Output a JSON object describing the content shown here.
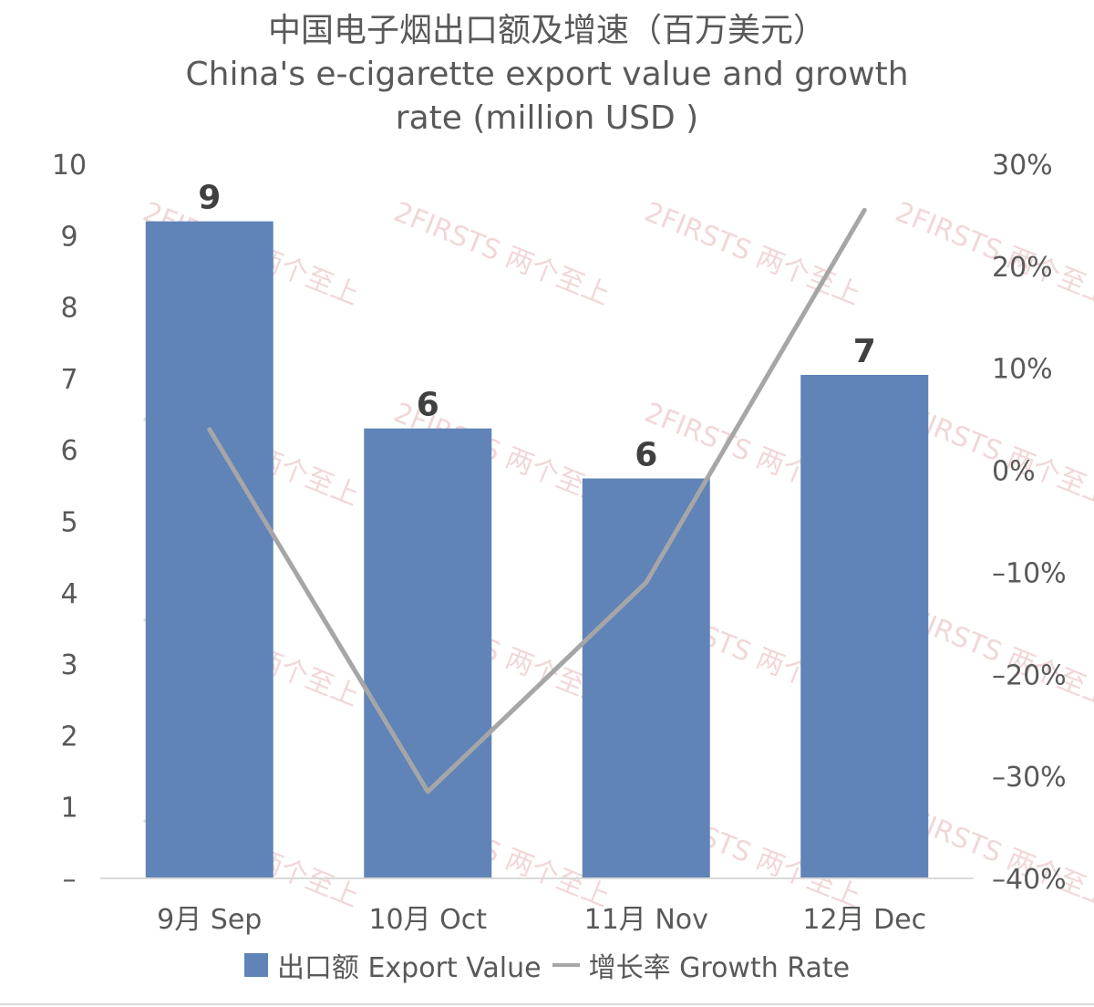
{
  "chart_data": {
    "type": "bar+line",
    "title": "中国电子烟出口额及增速（百万美元）",
    "subtitle_line1": "China's e-cigarette export value and growth",
    "subtitle_line2": "rate (million USD )",
    "categories": [
      "9月 Sep",
      "10月 Oct",
      "11月 Nov",
      "12月 Dec"
    ],
    "series": [
      {
        "name": "出口额 Export Value",
        "type": "bar",
        "axis": "left",
        "values": [
          9.2,
          6.3,
          5.6,
          7.05
        ],
        "data_labels": [
          "9",
          "6",
          "6",
          "7"
        ],
        "color": "#6083b8"
      },
      {
        "name": "增长率 Growth Rate",
        "type": "line",
        "axis": "right",
        "values": [
          4,
          -31.5,
          -11,
          25.5
        ],
        "color": "#a6a6a6"
      }
    ],
    "y_left": {
      "range": [
        0,
        10
      ],
      "ticks": [
        0,
        1,
        2,
        3,
        4,
        5,
        6,
        7,
        8,
        9,
        10
      ],
      "tick_labels": [
        "–",
        "1",
        "2",
        "3",
        "4",
        "5",
        "6",
        "7",
        "8",
        "9",
        "10"
      ]
    },
    "y_right": {
      "range": [
        -40,
        30
      ],
      "ticks": [
        30,
        20,
        10,
        0,
        -10,
        -20,
        -30,
        -40
      ],
      "tick_labels": [
        "30%",
        "20%",
        "10%",
        "0%",
        "–10%",
        "–20%",
        "–30%",
        "–40%"
      ]
    },
    "grid": false,
    "legend_position": "bottom"
  },
  "watermark": "2FIRSTS 两个至上"
}
